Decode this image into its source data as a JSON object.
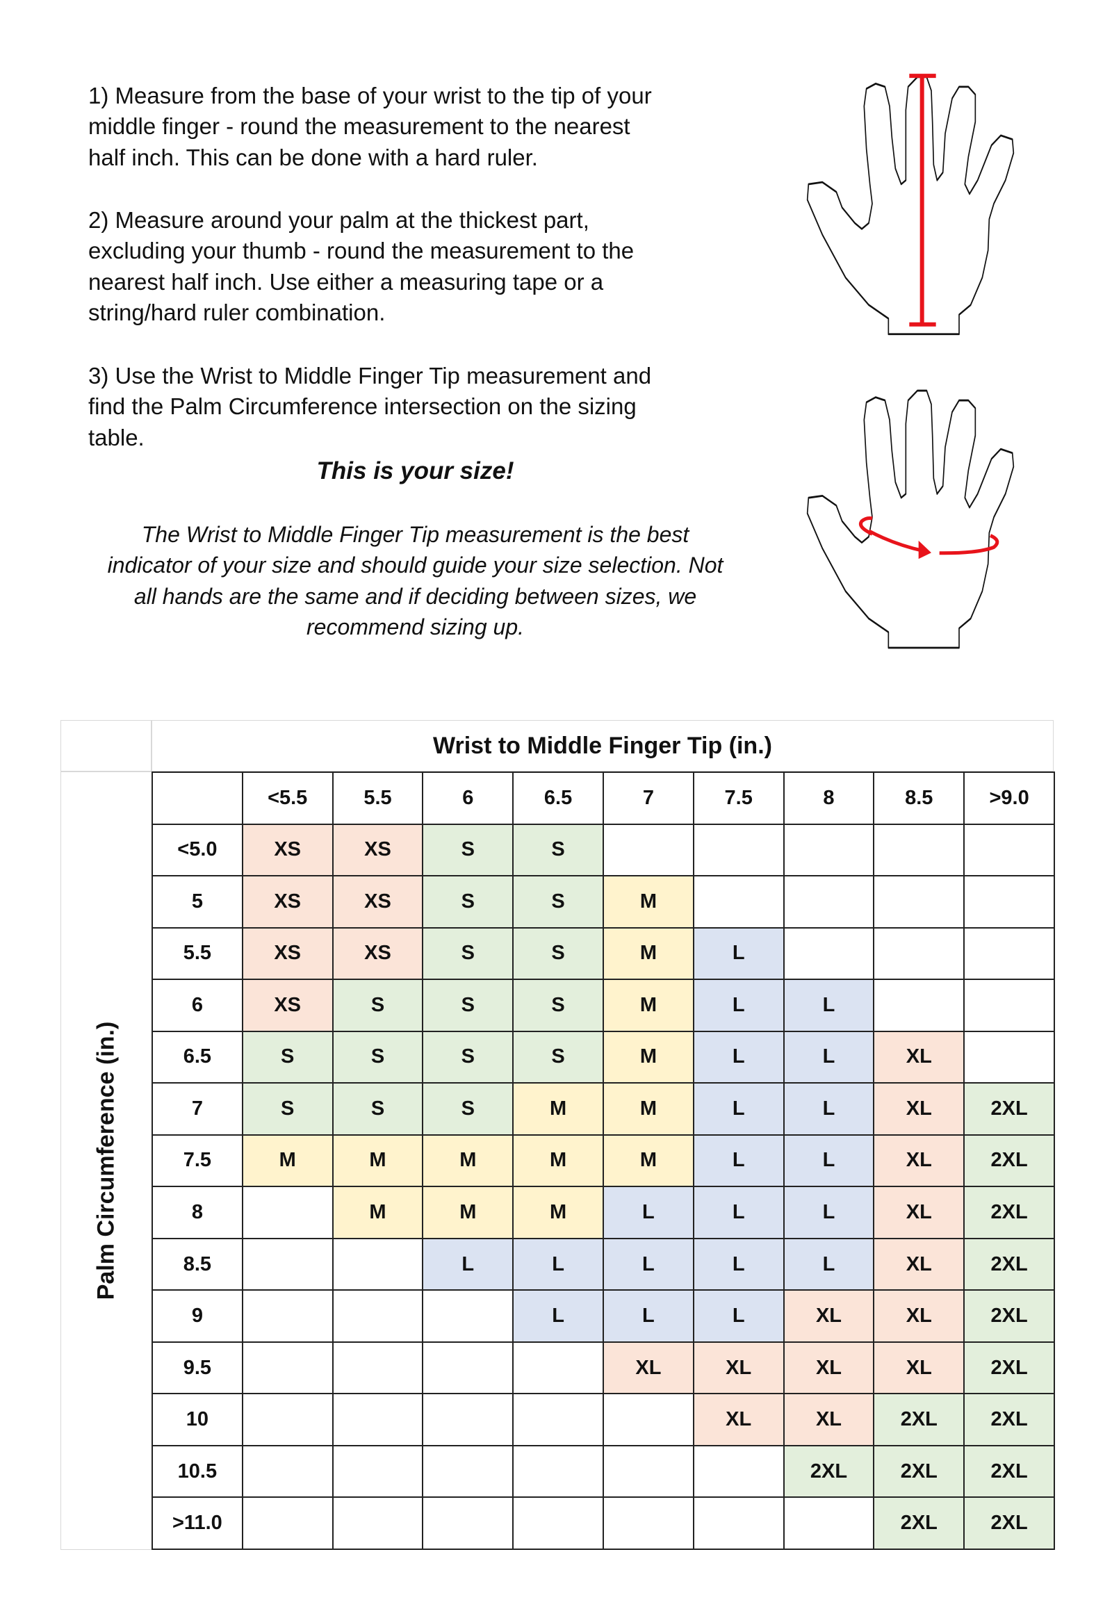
{
  "instructions": {
    "step1": [
      "1) Measure from the base of your wrist to the tip of your",
      "middle finger - round the measurement to the nearest",
      "half inch. This can be done with a hard ruler."
    ],
    "step2": [
      "2) Measure around your palm at the thickest part,",
      "excluding your thumb - round the measurement to the",
      "nearest half inch. Use either a measuring tape or a",
      "string/hard ruler combination."
    ],
    "step3": [
      "3) Use the Wrist to Middle Finger Tip measurement and",
      "find the Palm Circumference intersection on the sizing",
      "table."
    ],
    "emphasis": "This is your size!",
    "note": [
      "The Wrist to Middle Finger Tip measurement is the best",
      "indicator of your size and should guide your size selection. Not",
      "all hands are the same and if deciding between sizes, we",
      "recommend sizing up."
    ]
  },
  "illustrations": {
    "measure_color": "#e8141b",
    "outline_color": "#111111"
  },
  "table": {
    "column_title": "Wrist to Middle Finger Tip (in.)",
    "row_title": "Palm Circumference (in.)",
    "columns": [
      "<5.5",
      "5.5",
      "6",
      "6.5",
      "7",
      "7.5",
      "8",
      "8.5",
      ">9.0"
    ],
    "rows": [
      {
        "label": "<5.0",
        "sizes": [
          "XS",
          "XS",
          "S",
          "S",
          "",
          "",
          "",
          "",
          ""
        ]
      },
      {
        "label": "5",
        "sizes": [
          "XS",
          "XS",
          "S",
          "S",
          "M",
          "",
          "",
          "",
          ""
        ]
      },
      {
        "label": "5.5",
        "sizes": [
          "XS",
          "XS",
          "S",
          "S",
          "M",
          "L",
          "",
          "",
          ""
        ]
      },
      {
        "label": "6",
        "sizes": [
          "XS",
          "S",
          "S",
          "S",
          "M",
          "L",
          "L",
          "",
          ""
        ]
      },
      {
        "label": "6.5",
        "sizes": [
          "S",
          "S",
          "S",
          "S",
          "M",
          "L",
          "L",
          "XL",
          ""
        ]
      },
      {
        "label": "7",
        "sizes": [
          "S",
          "S",
          "S",
          "M",
          "M",
          "L",
          "L",
          "XL",
          "2XL"
        ]
      },
      {
        "label": "7.5",
        "sizes": [
          "M",
          "M",
          "M",
          "M",
          "M",
          "L",
          "L",
          "XL",
          "2XL"
        ]
      },
      {
        "label": "8",
        "sizes": [
          "",
          "M",
          "M",
          "M",
          "L",
          "L",
          "L",
          "XL",
          "2XL"
        ]
      },
      {
        "label": "8.5",
        "sizes": [
          "",
          "",
          "L",
          "L",
          "L",
          "L",
          "L",
          "XL",
          "2XL"
        ]
      },
      {
        "label": "9",
        "sizes": [
          "",
          "",
          "",
          "L",
          "L",
          "L",
          "XL",
          "XL",
          "2XL"
        ]
      },
      {
        "label": "9.5",
        "sizes": [
          "",
          "",
          "",
          "",
          "XL",
          "XL",
          "XL",
          "XL",
          "2XL"
        ]
      },
      {
        "label": "10",
        "sizes": [
          "",
          "",
          "",
          "",
          "",
          "XL",
          "XL",
          "2XL",
          "2XL"
        ]
      },
      {
        "label": "10.5",
        "sizes": [
          "",
          "",
          "",
          "",
          "",
          "",
          "2XL",
          "2XL",
          "2XL"
        ]
      },
      {
        "label": ">11.0",
        "sizes": [
          "",
          "",
          "",
          "",
          "",
          "",
          "",
          "2XL",
          "2XL"
        ]
      }
    ],
    "size_colors": {
      "XS": "#fbe4d8",
      "S": "#e3efdc",
      "M": "#fff3cd",
      "L": "#dbe3f2",
      "XL": "#fbe4d8",
      "2XL": "#e3efdc"
    }
  }
}
